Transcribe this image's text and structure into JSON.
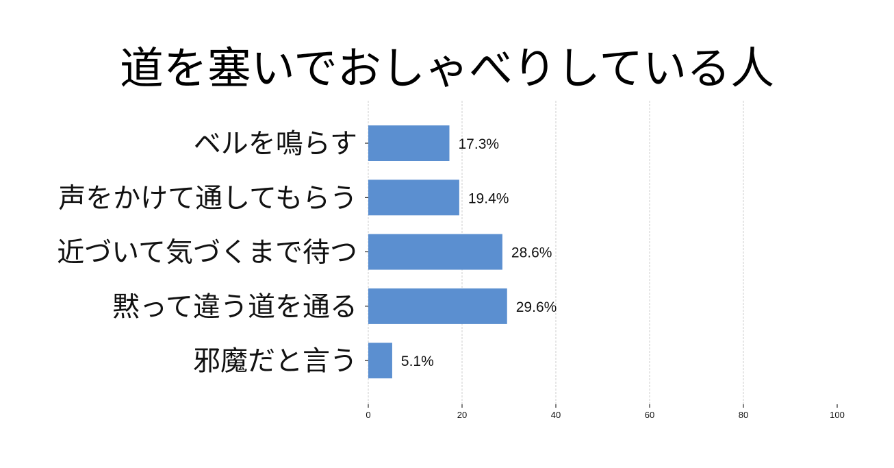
{
  "chart_data": {
    "type": "bar",
    "orientation": "horizontal",
    "title": "道を塞いでおしゃべりしている人",
    "categories": [
      "ベルを鳴らす",
      "声をかけて通してもらう",
      "近づいて気づくまで待つ",
      "黙って違う道を通る",
      "邪魔だと言う"
    ],
    "values": [
      17.3,
      19.4,
      28.6,
      29.6,
      5.1
    ],
    "value_labels": [
      "17.3%",
      "19.4%",
      "28.6%",
      "29.6%",
      "5.1%"
    ],
    "xlim": [
      0,
      100
    ],
    "xticks": [
      "0",
      "20",
      "40",
      "60",
      "80",
      "100"
    ],
    "xlabel": "",
    "ylabel": "",
    "grid": "vertical dashed",
    "bar_color": "#5b8fd0"
  }
}
